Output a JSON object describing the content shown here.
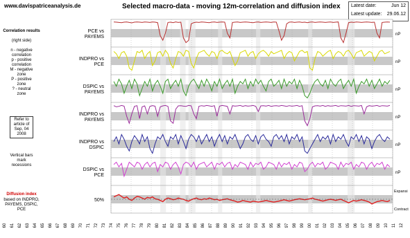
{
  "header": {
    "site": "www.davispatriceanalysis.de",
    "title": "Selected macro-data - moving 12m-correlation and diffusion index",
    "latest_date_label": "Latest date:",
    "latest_date_value": "Jun 12",
    "latest_update_label": "Latest update:",
    "latest_update_value": "29.06.12"
  },
  "legend_panel": {
    "heading": "Correlation results",
    "subheading": "(right side)",
    "lines": [
      "n - negative",
      "correlation",
      "p - positive",
      "correlation",
      "M - negative",
      "zone",
      "P - positive",
      "zone",
      "? - neutral",
      "zone"
    ],
    "refer_box": [
      "Refer to",
      "article of",
      "Sep, 04",
      "2008"
    ],
    "vertical_bars": [
      "Vertical bars",
      "mark",
      "recessions"
    ],
    "diffusion_heading": "Diffusion index",
    "diffusion_note": [
      "based on INDPRO,",
      "PAYEMS, DSPIC, PCE"
    ]
  },
  "chart_data": {
    "type": "line",
    "title": "Selected macro-data - moving 12m-correlation and diffusion index",
    "panels": [
      {
        "label": [
          "PCE vs",
          "PAYEMS"
        ],
        "color": "#b83030",
        "right_label": "nP",
        "values": [
          0.98,
          0.97,
          0.96,
          0.95,
          0.97,
          0.98,
          0.96,
          0.94,
          0.97,
          0.98,
          0.97,
          0.96,
          0.98,
          0.97,
          0.96,
          0.98,
          0.97,
          0.95,
          0.4,
          0.2,
          0.5,
          0.96,
          0.97,
          0.95,
          0.98,
          0.96,
          0.97,
          0.3,
          0.1,
          0.2,
          0.9,
          0.95,
          0.97,
          0.96,
          0.98,
          0.97,
          0.96,
          0.95,
          0.97,
          0.98,
          0.96,
          0.97,
          0.98,
          0.97,
          0.5,
          0.3,
          0.96,
          0.97,
          0.98,
          0.96,
          0.97,
          0.98,
          0.97,
          0.96,
          0.95,
          0.97,
          0.98,
          0.96,
          0.97,
          0.98,
          0.97,
          0.96,
          0.98,
          0.97,
          0.6,
          0.2,
          0.4,
          0.9,
          0.97,
          0.98,
          0.96,
          0.97,
          0.98,
          0.96,
          0.97,
          0.95,
          0.97,
          0.98,
          0.96,
          0.97,
          0.98,
          0.97,
          0.96,
          0.97,
          0.98,
          0.96,
          0.97,
          0.98,
          0.3,
          0.1,
          0.5,
          0.95,
          0.97,
          0.96,
          0.98,
          0.97,
          0.96,
          0.97,
          0.98,
          0.97,
          0.96,
          0.97,
          0.5,
          0.3,
          0.96,
          0.97,
          0.98,
          0.97
        ]
      },
      {
        "label": [
          "INDPRO vs",
          "PCE"
        ],
        "color": "#d8d800",
        "right_label": "nP",
        "values": [
          0.9,
          0.8,
          0.6,
          0.85,
          0.9,
          0.7,
          0.2,
          0.1,
          0.5,
          0.9,
          0.85,
          0.95,
          0.6,
          0.8,
          0.9,
          0.3,
          0.5,
          0.85,
          0.9,
          0.7,
          0.95,
          0.8,
          0.4,
          0.2,
          0.6,
          0.9,
          0.85,
          0.7,
          0.95,
          0.9,
          0.4,
          0.2,
          0.6,
          0.85,
          0.9,
          0.95,
          0.8,
          0.7,
          0.9,
          0.85,
          0.6,
          0.9,
          0.95,
          0.85,
          0.8,
          0.9,
          0.6,
          0.3,
          0.5,
          0.85,
          0.9,
          0.95,
          0.7,
          0.85,
          0.9,
          0.6,
          0.8,
          0.9,
          0.95,
          0.85,
          0.7,
          0.9,
          0.8,
          0.85,
          0.9,
          0.95,
          0.6,
          0.8,
          0.9,
          0.85,
          0.5,
          0.7,
          0.9,
          0.95,
          0.85,
          0.9,
          0.2,
          0.1,
          0.6,
          0.9,
          0.85,
          0.7,
          0.8,
          0.9,
          0.95,
          0.6,
          0.8,
          0.9,
          0.85,
          0.7,
          0.9,
          0.95,
          0.8,
          0.6,
          0.85,
          0.9,
          0.95,
          0.7,
          0.8,
          0.9,
          0.85,
          0.5,
          0.7,
          0.9,
          0.95,
          0.8,
          0.85,
          0.9
        ]
      },
      {
        "label": [
          "DSPIC vs",
          "PAYEMS"
        ],
        "color": "#3a9a2a",
        "right_label": "nP",
        "values": [
          0.8,
          0.6,
          0.9,
          0.7,
          0.3,
          0.6,
          0.85,
          0.5,
          0.9,
          0.7,
          0.2,
          0.5,
          0.8,
          0.6,
          0.9,
          0.4,
          0.7,
          0.85,
          0.6,
          0.3,
          0.8,
          0.9,
          0.5,
          0.7,
          0.85,
          0.6,
          0.9,
          0.4,
          0.2,
          0.6,
          0.8,
          0.9,
          0.7,
          0.5,
          0.85,
          0.6,
          0.9,
          0.7,
          0.4,
          0.8,
          0.6,
          0.9,
          0.5,
          0.7,
          0.85,
          0.6,
          0.9,
          0.3,
          0.6,
          0.8,
          0.7,
          0.9,
          0.5,
          0.8,
          0.6,
          0.9,
          0.7,
          0.85,
          0.6,
          0.4,
          0.8,
          0.9,
          0.6,
          0.7,
          0.85,
          0.5,
          0.9,
          0.6,
          0.8,
          0.7,
          0.9,
          0.5,
          0.85,
          0.6,
          0.2,
          0.1,
          0.3,
          0.6,
          0.8,
          0.9,
          0.7,
          0.6,
          0.85,
          0.5,
          0.9,
          0.7,
          0.6,
          0.8,
          0.9,
          0.5,
          0.7,
          0.85,
          0.6,
          0.9,
          0.3,
          0.6,
          0.8,
          0.7,
          0.9,
          0.6,
          0.85,
          0.5,
          0.7,
          0.9,
          0.6,
          0.8,
          0.7,
          0.85
        ]
      },
      {
        "label": [
          "INDPRO vs",
          "PAYEMS"
        ],
        "color": "#9a2a9a",
        "right_label": "nP",
        "values": [
          0.95,
          0.9,
          0.92,
          0.96,
          0.93,
          0.5,
          0.2,
          0.6,
          0.92,
          0.95,
          0.4,
          0.9,
          0.94,
          0.6,
          0.92,
          0.95,
          0.93,
          0.5,
          0.9,
          0.94,
          0.96,
          0.92,
          0.3,
          0.2,
          0.8,
          0.94,
          0.95,
          0.93,
          0.92,
          0.96,
          0.94,
          0.6,
          0.4,
          0.92,
          0.95,
          0.93,
          0.96,
          0.94,
          0.92,
          0.95,
          0.5,
          0.93,
          0.96,
          0.94,
          0.92,
          0.6,
          0.95,
          0.93,
          0.94,
          0.96,
          0.92,
          0.95,
          0.93,
          0.94,
          0.96,
          0.92,
          0.7,
          0.94,
          0.95,
          0.93,
          0.96,
          0.92,
          0.94,
          0.95,
          0.93,
          0.96,
          0.94,
          0.92,
          0.95,
          0.93,
          0.94,
          0.96,
          0.92,
          0.95,
          0.3,
          0.1,
          0.4,
          0.9,
          0.94,
          0.95,
          0.93,
          0.96,
          0.92,
          0.95,
          0.93,
          0.94,
          0.96,
          0.92,
          0.95,
          0.94,
          0.93,
          0.96,
          0.92,
          0.95,
          0.94,
          0.93,
          0.96,
          0.6,
          0.9,
          0.95,
          0.93,
          0.94,
          0.96,
          0.92,
          0.95,
          0.94,
          0.93,
          0.96
        ]
      },
      {
        "label": [
          "INDPRO vs",
          "DSPIC"
        ],
        "color": "#2a2a9a",
        "right_label": "nP",
        "values": [
          0.6,
          0.8,
          0.5,
          0.9,
          0.7,
          0.4,
          0.2,
          0.6,
          0.85,
          0.7,
          0.5,
          0.9,
          0.6,
          0.8,
          0.3,
          0.1,
          0.5,
          0.8,
          0.7,
          0.9,
          0.6,
          0.4,
          0.8,
          0.7,
          0.9,
          0.5,
          0.85,
          0.6,
          0.3,
          0.7,
          0.9,
          0.8,
          0.6,
          0.85,
          0.5,
          0.7,
          0.9,
          0.6,
          0.8,
          0.4,
          0.7,
          0.9,
          0.6,
          0.85,
          0.5,
          0.8,
          0.7,
          0.9,
          0.6,
          0.3,
          0.5,
          0.8,
          0.9,
          0.7,
          0.6,
          0.85,
          0.5,
          0.8,
          0.9,
          0.7,
          0.6,
          0.4,
          0.8,
          0.9,
          0.7,
          0.85,
          0.6,
          0.9,
          0.5,
          0.8,
          0.7,
          0.9,
          0.6,
          0.8,
          0.2,
          0.1,
          0.3,
          0.5,
          0.7,
          0.9,
          0.6,
          0.8,
          0.7,
          0.85,
          0.5,
          0.9,
          0.6,
          0.8,
          0.7,
          0.9,
          0.6,
          0.4,
          0.8,
          0.7,
          0.9,
          0.6,
          0.85,
          0.5,
          0.8,
          0.7,
          0.3,
          0.6,
          0.8,
          0.9,
          0.7,
          0.6,
          0.8,
          0.7
        ]
      },
      {
        "label": [
          "DSPIC vs",
          "PCE"
        ],
        "color": "#d040d0",
        "right_label": "nP",
        "values": [
          0.8,
          0.9,
          0.7,
          0.85,
          0.3,
          0.6,
          0.9,
          0.8,
          0.7,
          0.9,
          0.85,
          0.6,
          0.8,
          0.9,
          0.7,
          0.85,
          0.9,
          0.5,
          0.8,
          0.7,
          0.9,
          0.85,
          0.6,
          0.8,
          0.9,
          0.7,
          0.4,
          0.8,
          0.9,
          0.85,
          0.7,
          0.9,
          0.6,
          0.8,
          0.85,
          0.9,
          0.7,
          0.8,
          0.9,
          0.6,
          0.85,
          0.8,
          0.9,
          0.7,
          0.85,
          0.9,
          0.6,
          0.8,
          0.7,
          0.9,
          0.85,
          0.8,
          0.6,
          0.9,
          0.7,
          0.85,
          0.8,
          0.9,
          0.6,
          0.7,
          0.9,
          0.85,
          0.8,
          0.6,
          0.9,
          0.7,
          0.85,
          0.8,
          0.9,
          0.6,
          0.8,
          0.7,
          0.9,
          0.85,
          0.5,
          0.6,
          0.8,
          0.9,
          0.7,
          0.85,
          0.8,
          0.9,
          0.6,
          0.7,
          0.9,
          0.85,
          0.8,
          0.6,
          0.9,
          0.7,
          0.85,
          0.8,
          0.9,
          0.6,
          0.8,
          0.7,
          0.9,
          0.85,
          0.6,
          0.8,
          0.9,
          0.7,
          0.85,
          0.8,
          0.9,
          0.6,
          0.8,
          0.7
        ]
      },
      {
        "label": [
          "50%"
        ],
        "color": "#e02020",
        "right_label_top": "Expansi",
        "right_label_bottom": "Contract",
        "values": [
          0.6,
          0.65,
          0.7,
          0.62,
          0.55,
          0.6,
          0.5,
          0.45,
          0.55,
          0.62,
          0.6,
          0.55,
          0.5,
          0.58,
          0.55,
          0.6,
          0.52,
          0.5,
          0.45,
          0.4,
          0.5,
          0.55,
          0.52,
          0.48,
          0.5,
          0.55,
          0.52,
          0.5,
          0.45,
          0.42,
          0.48,
          0.52,
          0.55,
          0.5,
          0.48,
          0.52,
          0.5,
          0.55,
          0.52,
          0.48,
          0.5,
          0.45,
          0.48,
          0.5,
          0.52,
          0.48,
          0.45,
          0.42,
          0.38,
          0.4,
          0.45,
          0.42,
          0.4,
          0.38,
          0.42,
          0.4,
          0.38,
          0.4,
          0.42,
          0.45,
          0.42,
          0.4,
          0.38,
          0.4,
          0.42,
          0.45,
          0.48,
          0.45,
          0.42,
          0.45,
          0.48,
          0.5,
          0.52,
          0.5,
          0.48,
          0.5,
          0.52,
          0.55,
          0.5,
          0.48,
          0.45,
          0.42,
          0.45,
          0.48,
          0.5,
          0.48,
          0.45,
          0.48,
          0.5,
          0.45,
          0.4,
          0.35,
          0.4,
          0.45,
          0.42,
          0.45,
          0.48,
          0.45,
          0.42,
          0.38,
          0.3,
          0.35,
          0.4,
          0.42,
          0.45,
          0.42,
          0.4,
          0.45
        ]
      }
    ],
    "recessions": [
      [
        0.175,
        0.195
      ],
      [
        0.245,
        0.265
      ],
      [
        0.275,
        0.3
      ],
      [
        0.38,
        0.395
      ],
      [
        0.515,
        0.53
      ],
      [
        0.7,
        0.715
      ],
      [
        0.84,
        0.865
      ]
    ],
    "x_tick_labels": [
      "60",
      "61",
      "62",
      "63",
      "64",
      "65",
      "66",
      "67",
      "68",
      "69",
      "70",
      "71",
      "72",
      "73",
      "74",
      "75",
      "76",
      "77",
      "78",
      "79",
      "80",
      "81",
      "82",
      "83",
      "84",
      "85",
      "86",
      "87",
      "88",
      "89",
      "90",
      "91",
      "92",
      "93",
      "94",
      "95",
      "96",
      "97",
      "98",
      "99",
      "00",
      "01",
      "02",
      "03",
      "04",
      "05",
      "06",
      "07",
      "08",
      "09",
      "10",
      "11",
      "12"
    ],
    "grid": true
  }
}
